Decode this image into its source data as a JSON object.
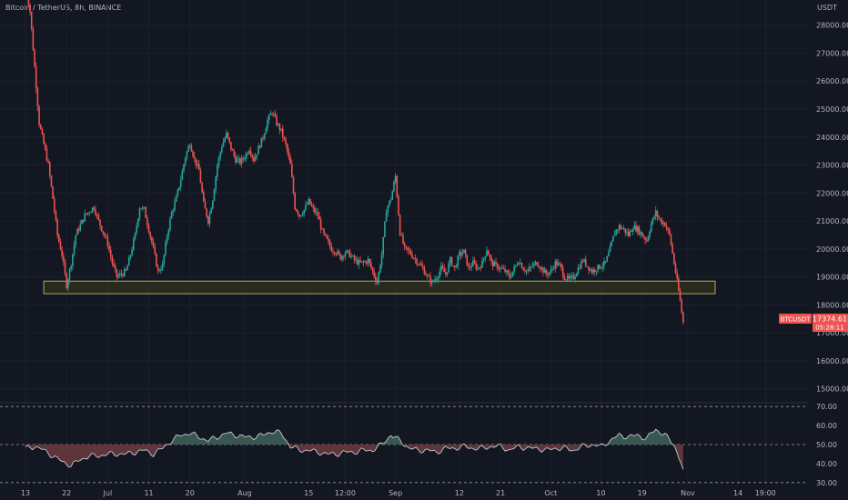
{
  "header": {
    "title": "Bitcoin / TetherUS, 8h, BINANCE",
    "currency": "USDT"
  },
  "colors": {
    "background": "#131722",
    "up": "#26a69a",
    "down": "#ef5350",
    "zone_stroke": "#b0ac4b",
    "zone_fill": "#3b3a1e",
    "rsi_up": "#3f6358",
    "rsi_down": "#6b3b40",
    "axis_text": "#b2b5be"
  },
  "price_badge": {
    "symbol": "BTCUSDT",
    "price": "17374.61",
    "countdown": "05:28:11"
  },
  "chart_data": {
    "type": "candlestick",
    "symbol": "BTCUSDT",
    "interval": "8h",
    "exchange": "BINANCE",
    "ylim": [
      14600,
      28900
    ],
    "y_ticks": [
      "28000.00",
      "27000.00",
      "26000.00",
      "25000.00",
      "24000.00",
      "23000.00",
      "22000.00",
      "21000.00",
      "20000.00",
      "19000.00",
      "18000.00",
      "17000.00",
      "16000.00",
      "15000.00"
    ],
    "y_tick_values": [
      28000,
      27000,
      26000,
      25000,
      24000,
      23000,
      22000,
      21000,
      20000,
      19000,
      18000,
      17000,
      16000,
      15000
    ],
    "x_ticks": [
      "13",
      "22",
      "Jul",
      "11",
      "20",
      "Aug",
      "15",
      "12:00",
      "Sep",
      "12",
      "21",
      "Oct",
      "10",
      "19",
      "Nov",
      "14",
      "19:00"
    ],
    "x_tick_pos": [
      0,
      9,
      18,
      27,
      36,
      48,
      62,
      70,
      81,
      95,
      104,
      115,
      126,
      135,
      145,
      156,
      162
    ],
    "total_days": 168,
    "support_zone": {
      "low": 18400,
      "high": 18850,
      "from_day": 4,
      "to_day": 151
    },
    "last_price": 17374.61,
    "close_anchors": [
      [
        0,
        29500
      ],
      [
        1,
        28500
      ],
      [
        3,
        24500
      ],
      [
        5,
        23000
      ],
      [
        6,
        21800
      ],
      [
        7,
        20500
      ],
      [
        8,
        19800
      ],
      [
        9,
        18700
      ],
      [
        10,
        19500
      ],
      [
        11,
        20500
      ],
      [
        13,
        21200
      ],
      [
        15,
        21500
      ],
      [
        16,
        21000
      ],
      [
        18,
        20200
      ],
      [
        19,
        19500
      ],
      [
        20,
        19000
      ],
      [
        22,
        19200
      ],
      [
        23,
        19800
      ],
      [
        24,
        20500
      ],
      [
        25,
        21500
      ],
      [
        26,
        21400
      ],
      [
        27,
        20700
      ],
      [
        28,
        20000
      ],
      [
        29,
        19200
      ],
      [
        30,
        19400
      ],
      [
        31,
        20500
      ],
      [
        32,
        21300
      ],
      [
        33,
        21800
      ],
      [
        34,
        22500
      ],
      [
        35,
        23300
      ],
      [
        36,
        23800
      ],
      [
        37,
        23200
      ],
      [
        38,
        22800
      ],
      [
        39,
        21600
      ],
      [
        40,
        21000
      ],
      [
        41,
        21800
      ],
      [
        42,
        23000
      ],
      [
        43,
        23700
      ],
      [
        44,
        24100
      ],
      [
        45,
        23600
      ],
      [
        46,
        23200
      ],
      [
        47,
        23100
      ],
      [
        48,
        23300
      ],
      [
        49,
        23600
      ],
      [
        50,
        23200
      ],
      [
        51,
        23600
      ],
      [
        52,
        24000
      ],
      [
        53,
        24600
      ],
      [
        54,
        24900
      ],
      [
        55,
        24500
      ],
      [
        56,
        24200
      ],
      [
        57,
        23700
      ],
      [
        58,
        23000
      ],
      [
        59,
        21500
      ],
      [
        60,
        21200
      ],
      [
        61,
        21400
      ],
      [
        62,
        21700
      ],
      [
        63,
        21400
      ],
      [
        64,
        21200
      ],
      [
        65,
        20600
      ],
      [
        66,
        20300
      ],
      [
        67,
        20000
      ],
      [
        68,
        19900
      ],
      [
        69,
        19700
      ],
      [
        70,
        19900
      ],
      [
        71,
        19800
      ],
      [
        72,
        19600
      ],
      [
        73,
        19500
      ],
      [
        74,
        19500
      ],
      [
        75,
        19600
      ],
      [
        76,
        19200
      ],
      [
        77,
        18800
      ],
      [
        78,
        19800
      ],
      [
        79,
        21400
      ],
      [
        80,
        21800
      ],
      [
        81,
        22600
      ],
      [
        82,
        20600
      ],
      [
        83,
        20000
      ],
      [
        84,
        19900
      ],
      [
        85,
        19700
      ],
      [
        86,
        19500
      ],
      [
        87,
        19300
      ],
      [
        88,
        19000
      ],
      [
        89,
        18800
      ],
      [
        90,
        19000
      ],
      [
        91,
        19300
      ],
      [
        92,
        19100
      ],
      [
        93,
        19600
      ],
      [
        94,
        19300
      ],
      [
        95,
        19800
      ],
      [
        96,
        19900
      ],
      [
        97,
        19300
      ],
      [
        98,
        19500
      ],
      [
        99,
        19300
      ],
      [
        100,
        19500
      ],
      [
        101,
        20000
      ],
      [
        102,
        19500
      ],
      [
        103,
        19400
      ],
      [
        104,
        19300
      ],
      [
        105,
        19200
      ],
      [
        106,
        19000
      ],
      [
        107,
        19300
      ],
      [
        108,
        19600
      ],
      [
        109,
        19300
      ],
      [
        110,
        19200
      ],
      [
        111,
        19400
      ],
      [
        112,
        19500
      ],
      [
        113,
        19300
      ],
      [
        114,
        19100
      ],
      [
        115,
        19200
      ],
      [
        116,
        19500
      ],
      [
        117,
        19400
      ],
      [
        118,
        19000
      ],
      [
        119,
        18900
      ],
      [
        120,
        19000
      ],
      [
        121,
        19300
      ],
      [
        122,
        19600
      ],
      [
        123,
        19400
      ],
      [
        124,
        19200
      ],
      [
        125,
        19300
      ],
      [
        126,
        19400
      ],
      [
        127,
        19500
      ],
      [
        128,
        20000
      ],
      [
        129,
        20600
      ],
      [
        130,
        20800
      ],
      [
        131,
        20700
      ],
      [
        132,
        20500
      ],
      [
        133,
        20800
      ],
      [
        134,
        20700
      ],
      [
        135,
        20500
      ],
      [
        136,
        20300
      ],
      [
        137,
        20900
      ],
      [
        138,
        21300
      ],
      [
        139,
        21000
      ],
      [
        140,
        20900
      ],
      [
        141,
        20500
      ],
      [
        142,
        19500
      ],
      [
        143,
        18500
      ],
      [
        144,
        17374
      ]
    ],
    "rsi": {
      "ylim": [
        28,
        72
      ],
      "levels": [
        70,
        50,
        30
      ],
      "y_ticks": [
        "70.00",
        "60.00",
        "50.00",
        "40.00",
        "30.00"
      ],
      "y_tick_values": [
        70,
        60,
        50,
        40,
        30
      ],
      "anchors": [
        [
          0,
          48
        ],
        [
          2,
          49
        ],
        [
          4,
          47
        ],
        [
          6,
          44
        ],
        [
          8,
          41
        ],
        [
          10,
          39
        ],
        [
          12,
          42
        ],
        [
          14,
          44
        ],
        [
          16,
          44
        ],
        [
          18,
          45
        ],
        [
          20,
          45
        ],
        [
          22,
          45
        ],
        [
          24,
          46
        ],
        [
          26,
          47
        ],
        [
          28,
          45
        ],
        [
          30,
          48
        ],
        [
          32,
          52
        ],
        [
          34,
          55
        ],
        [
          36,
          56
        ],
        [
          38,
          54
        ],
        [
          40,
          52
        ],
        [
          42,
          54
        ],
        [
          44,
          56
        ],
        [
          46,
          55
        ],
        [
          48,
          54
        ],
        [
          50,
          54
        ],
        [
          52,
          55
        ],
        [
          54,
          57
        ],
        [
          56,
          56
        ],
        [
          58,
          49
        ],
        [
          60,
          47
        ],
        [
          62,
          47
        ],
        [
          64,
          46
        ],
        [
          66,
          45
        ],
        [
          68,
          45
        ],
        [
          70,
          46
        ],
        [
          72,
          46
        ],
        [
          74,
          47
        ],
        [
          76,
          47
        ],
        [
          78,
          50
        ],
        [
          80,
          55
        ],
        [
          82,
          52
        ],
        [
          84,
          48
        ],
        [
          86,
          47
        ],
        [
          88,
          47
        ],
        [
          90,
          46
        ],
        [
          92,
          48
        ],
        [
          94,
          48
        ],
        [
          96,
          49
        ],
        [
          98,
          48
        ],
        [
          100,
          48
        ],
        [
          102,
          49
        ],
        [
          104,
          49
        ],
        [
          106,
          47
        ],
        [
          108,
          49
        ],
        [
          110,
          48
        ],
        [
          112,
          48
        ],
        [
          114,
          47
        ],
        [
          116,
          48
        ],
        [
          118,
          48
        ],
        [
          120,
          47
        ],
        [
          122,
          49
        ],
        [
          124,
          50
        ],
        [
          126,
          49
        ],
        [
          128,
          52
        ],
        [
          130,
          55
        ],
        [
          132,
          54
        ],
        [
          134,
          55
        ],
        [
          136,
          53
        ],
        [
          137,
          56
        ],
        [
          138,
          58
        ],
        [
          140,
          55
        ],
        [
          142,
          50
        ],
        [
          144,
          37
        ]
      ]
    }
  }
}
